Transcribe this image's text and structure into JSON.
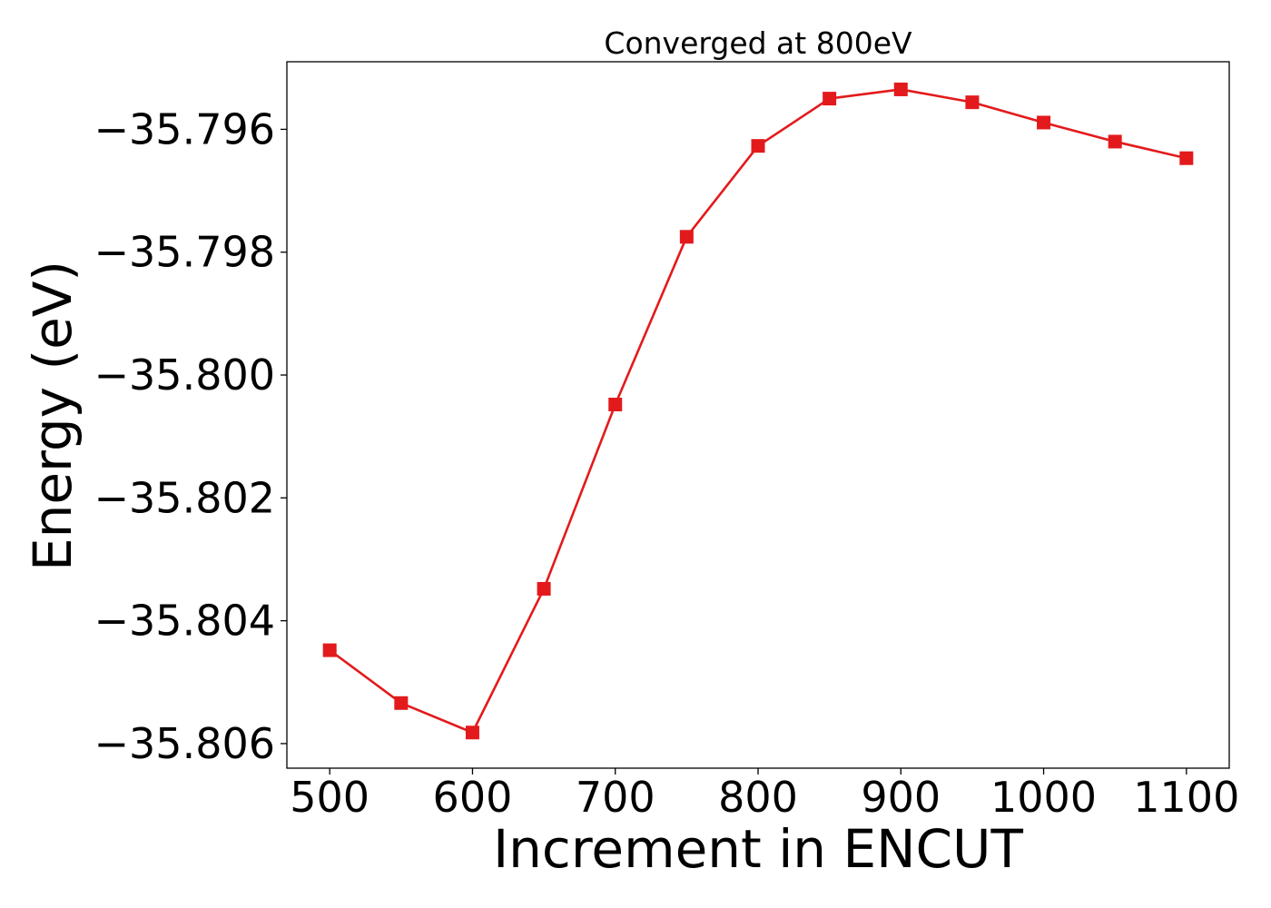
{
  "chart_data": {
    "type": "line",
    "title": "Converged at 800eV",
    "xlabel": "Increment in ENCUT",
    "ylabel": "Energy (eV)",
    "xlim": [
      470,
      1130
    ],
    "ylim": [
      -35.8064,
      -35.7949
    ],
    "x_ticks": [
      500,
      600,
      700,
      800,
      900,
      1000,
      1100
    ],
    "x_tick_labels": [
      "500",
      "600",
      "700",
      "800",
      "900",
      "1000",
      "1100"
    ],
    "y_ticks": [
      -35.806,
      -35.804,
      -35.802,
      -35.8,
      -35.798,
      -35.796
    ],
    "y_tick_labels": [
      "−35.806",
      "−35.804",
      "−35.802",
      "−35.800",
      "−35.798",
      "−35.796"
    ],
    "grid": false,
    "series": [
      {
        "color": "#e31a1c",
        "marker": "square",
        "x": [
          500,
          550,
          600,
          650,
          700,
          750,
          800,
          850,
          900,
          950,
          1000,
          1050,
          1100
        ],
        "y": [
          -35.80448,
          -35.80534,
          -35.80582,
          -35.80348,
          -35.80048,
          -35.79775,
          -35.79627,
          -35.7955,
          -35.79535,
          -35.79556,
          -35.79589,
          -35.7962,
          -35.79647
        ]
      }
    ]
  }
}
